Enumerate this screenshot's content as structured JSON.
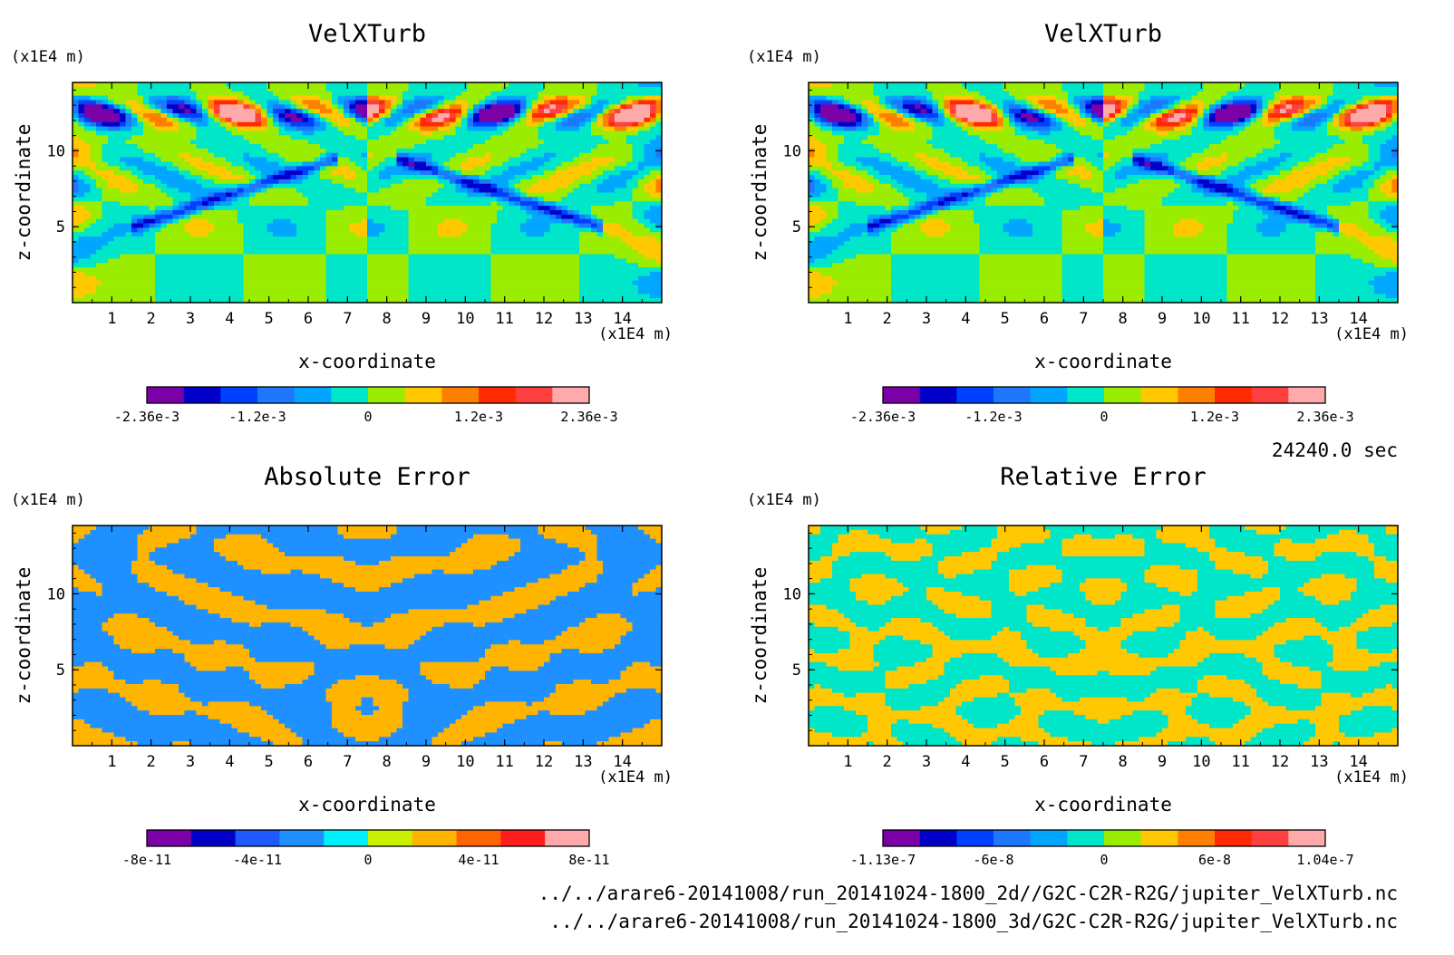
{
  "chart_data": [
    {
      "type": "heatmap",
      "title": "VelXTurb",
      "xlabel": "x-coordinate",
      "ylabel": "z-coordinate",
      "x_unit": "(x1E4 m)",
      "y_unit": "(x1E4 m)",
      "xlim": [
        0,
        15
      ],
      "ylim": [
        0,
        14.5
      ],
      "xticks": [
        "1",
        "2",
        "3",
        "4",
        "5",
        "6",
        "7",
        "8",
        "9",
        "10",
        "11",
        "12",
        "13",
        "14"
      ],
      "yticks": [
        "5",
        "10"
      ],
      "colorbar_labels": [
        "-2.36e-3",
        "-1.2e-3",
        "0",
        "1.2e-3",
        "2.36e-3"
      ],
      "colorbar_range": [
        -0.00236,
        0.00236
      ],
      "pattern": "velocity",
      "colors": [
        "#7b00a8",
        "#0000c8",
        "#0040ff",
        "#1e78ff",
        "#00a6ff",
        "#00e6c8",
        "#9aed00",
        "#ffc800",
        "#ff8000",
        "#ff2a00",
        "#ff4040",
        "#ffaaaa"
      ]
    },
    {
      "type": "heatmap",
      "title": "VelXTurb",
      "xlabel": "x-coordinate",
      "ylabel": "z-coordinate",
      "x_unit": "(x1E4 m)",
      "y_unit": "(x1E4 m)",
      "xlim": [
        0,
        15
      ],
      "ylim": [
        0,
        14.5
      ],
      "xticks": [
        "1",
        "2",
        "3",
        "4",
        "5",
        "6",
        "7",
        "8",
        "9",
        "10",
        "11",
        "12",
        "13",
        "14"
      ],
      "yticks": [
        "5",
        "10"
      ],
      "colorbar_labels": [
        "-2.36e-3",
        "-1.2e-3",
        "0",
        "1.2e-3",
        "2.36e-3"
      ],
      "colorbar_range": [
        -0.00236,
        0.00236
      ],
      "pattern": "velocity",
      "colors": [
        "#7b00a8",
        "#0000c8",
        "#0040ff",
        "#1e78ff",
        "#00a6ff",
        "#00e6c8",
        "#9aed00",
        "#ffc800",
        "#ff8000",
        "#ff2a00",
        "#ff4040",
        "#ffaaaa"
      ]
    },
    {
      "type": "heatmap",
      "title": "Absolute Error",
      "xlabel": "x-coordinate",
      "ylabel": "z-coordinate",
      "x_unit": "(x1E4 m)",
      "y_unit": "(x1E4 m)",
      "xlim": [
        0,
        15
      ],
      "ylim": [
        0,
        14.5
      ],
      "xticks": [
        "1",
        "2",
        "3",
        "4",
        "5",
        "6",
        "7",
        "8",
        "9",
        "10",
        "11",
        "12",
        "13",
        "14"
      ],
      "yticks": [
        "5",
        "10"
      ],
      "colorbar_labels": [
        "-8e-11",
        "-4e-11",
        "0",
        "4e-11",
        "8e-11"
      ],
      "colorbar_range": [
        -1e-10,
        1e-10
      ],
      "pattern": "abs",
      "colors": [
        "#7b00a8",
        "#0000c8",
        "#1e58ff",
        "#1e90ff",
        "#00f0ff",
        "#c8f000",
        "#ffb400",
        "#ff6400",
        "#ff1e1e",
        "#ffaaaa"
      ]
    },
    {
      "type": "heatmap",
      "title": "Relative Error",
      "xlabel": "x-coordinate",
      "ylabel": "z-coordinate",
      "x_unit": "(x1E4 m)",
      "y_unit": "(x1E4 m)",
      "xlim": [
        0,
        15
      ],
      "ylim": [
        0,
        14.5
      ],
      "xticks": [
        "1",
        "2",
        "3",
        "4",
        "5",
        "6",
        "7",
        "8",
        "9",
        "10",
        "11",
        "12",
        "13",
        "14"
      ],
      "yticks": [
        "5",
        "10"
      ],
      "colorbar_labels": [
        "-1.13e-7",
        "-6e-8",
        "0",
        "6e-8",
        "1.04e-7"
      ],
      "colorbar_range": [
        -1.13e-07,
        1.04e-07
      ],
      "pattern": "rel",
      "colors": [
        "#7b00a8",
        "#0000c8",
        "#0040ff",
        "#1e78ff",
        "#00a6ff",
        "#00e6c8",
        "#9aed00",
        "#ffc800",
        "#ff8000",
        "#ff2a00",
        "#ff4040",
        "#ffaaaa"
      ]
    }
  ],
  "time_label": "24240.0 sec",
  "files": [
    "../../arare6-20141008/run_20141024-1800_2d//G2C-C2R-R2G/jupiter_VelXTurb.nc",
    "../../arare6-20141008/run_20141024-1800_3d/G2C-C2R-R2G/jupiter_VelXTurb.nc"
  ]
}
